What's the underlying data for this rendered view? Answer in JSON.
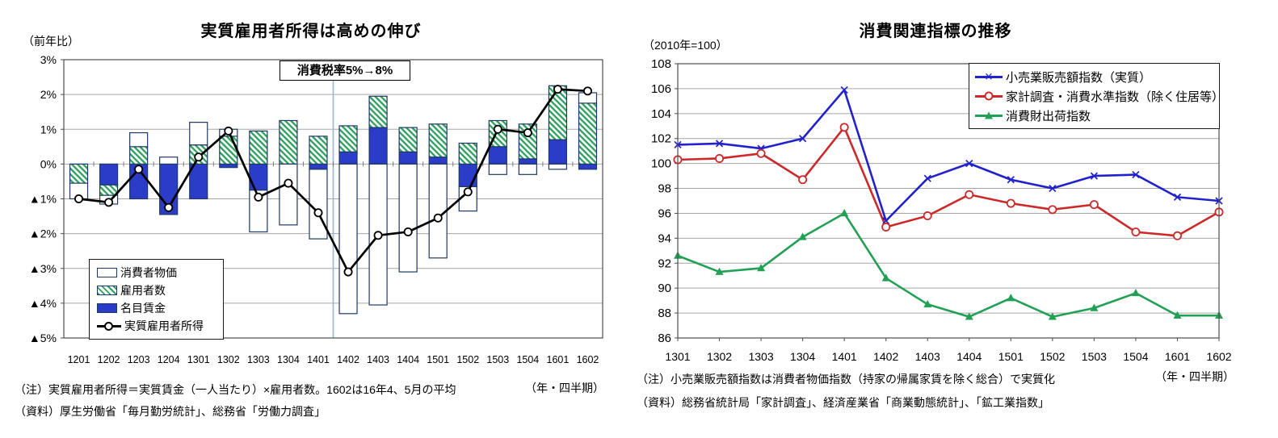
{
  "chart_data": [
    {
      "type": "bar+line",
      "title": "実質雇用者所得は高めの伸び",
      "unit_label": "（前年比）",
      "x_axis_note": "（年・四半期）",
      "annotation": {
        "text": "消費税率5%→8%",
        "line_after_category": "1401",
        "line_color": "#9ab5d1"
      },
      "categories": [
        "1201",
        "1202",
        "1203",
        "1204",
        "1301",
        "1302",
        "1303",
        "1304",
        "1401",
        "1402",
        "1403",
        "1404",
        "1501",
        "1502",
        "1503",
        "1504",
        "1601",
        "1602"
      ],
      "ylim": [
        -5,
        3
      ],
      "ytick_step": 1,
      "ytick_labels": [
        "3%",
        "2%",
        "1%",
        "0%",
        "▲1%",
        "▲2%",
        "▲3%",
        "▲4%",
        "▲5%"
      ],
      "grid": true,
      "legend_position": "inside-bottom-left",
      "bar_border_color": "#1f3864",
      "stack_order": [
        "名目賃金",
        "雇用者数",
        "消費者物価"
      ],
      "series": [
        {
          "name": "消費者物価",
          "type": "bar",
          "fill": "#ffffff",
          "values": [
            -0.45,
            -0.25,
            0.4,
            0.2,
            0.65,
            0.2,
            -1.2,
            -1.75,
            -2.0,
            -4.3,
            -4.05,
            -3.1,
            -2.7,
            -0.7,
            -0.3,
            -0.3,
            -0.15,
            0.3
          ]
        },
        {
          "name": "雇用者数",
          "type": "bar",
          "fill": "hatch",
          "color": "#2aa05a",
          "values": [
            -0.55,
            -0.3,
            0.5,
            0.0,
            0.55,
            0.8,
            0.95,
            1.25,
            0.8,
            0.75,
            0.9,
            0.7,
            0.95,
            0.6,
            0.75,
            1.0,
            1.55,
            1.75
          ]
        },
        {
          "name": "名目賃金",
          "type": "bar",
          "fill": "#2b3cc8",
          "values": [
            0.0,
            -0.6,
            -1.0,
            -1.45,
            -1.0,
            -0.1,
            -0.75,
            0.0,
            -0.15,
            0.35,
            1.05,
            0.35,
            0.2,
            -0.65,
            0.5,
            0.15,
            0.7,
            -0.15
          ]
        },
        {
          "name": "実質雇用者所得",
          "type": "line",
          "color": "#000000",
          "marker": "circle-open",
          "values": [
            -1.0,
            -1.1,
            -0.15,
            -1.25,
            0.2,
            0.95,
            -0.95,
            -0.55,
            -1.4,
            -3.1,
            -2.05,
            -1.95,
            -1.55,
            -0.8,
            1.0,
            0.9,
            2.15,
            2.1
          ]
        }
      ],
      "footnotes": [
        "（注）実質雇用者所得＝実質賃金（一人当たり）×雇用者数。1602は16年4、5月の平均",
        "（資料）厚生労働省「毎月勤労統計」、総務省「労働力調査」"
      ]
    },
    {
      "type": "line",
      "title": "消費関連指標の推移",
      "unit_label": "（2010年=100）",
      "x_axis_note": "（年・四半期）",
      "categories": [
        "1301",
        "1302",
        "1303",
        "1304",
        "1401",
        "1402",
        "1403",
        "1404",
        "1501",
        "1502",
        "1503",
        "1504",
        "1601",
        "1602"
      ],
      "ylim": [
        86,
        108
      ],
      "ytick_step": 2,
      "grid": true,
      "legend_position": "inside-top-right",
      "series": [
        {
          "name": "小売業販売額指数（実質）",
          "color": "#2222cc",
          "marker": "x",
          "values": [
            101.5,
            101.6,
            101.2,
            102.0,
            105.9,
            95.4,
            98.8,
            100.0,
            98.7,
            98.0,
            99.0,
            99.1,
            97.3,
            97.0
          ]
        },
        {
          "name": "家計調査・消費水準指数（除く住居等）",
          "color": "#cc2a2a",
          "marker": "circle-open",
          "values": [
            100.3,
            100.4,
            100.8,
            98.7,
            102.9,
            94.9,
            95.8,
            97.5,
            96.8,
            96.3,
            96.7,
            94.5,
            94.2,
            96.1
          ]
        },
        {
          "name": "消費財出荷指数",
          "color": "#22a055",
          "marker": "triangle",
          "values": [
            92.6,
            91.3,
            91.6,
            94.1,
            96.0,
            90.8,
            88.7,
            87.7,
            89.2,
            87.7,
            88.4,
            89.6,
            87.8,
            87.8
          ]
        }
      ],
      "footnotes": [
        "（注）小売業販売額指数は消費者物価指数（持家の帰属家賃を除く総合）で実質化",
        "（資料）総務省統計局「家計調査」、経済産業省「商業動態統計」、「鉱工業指数」"
      ]
    }
  ]
}
